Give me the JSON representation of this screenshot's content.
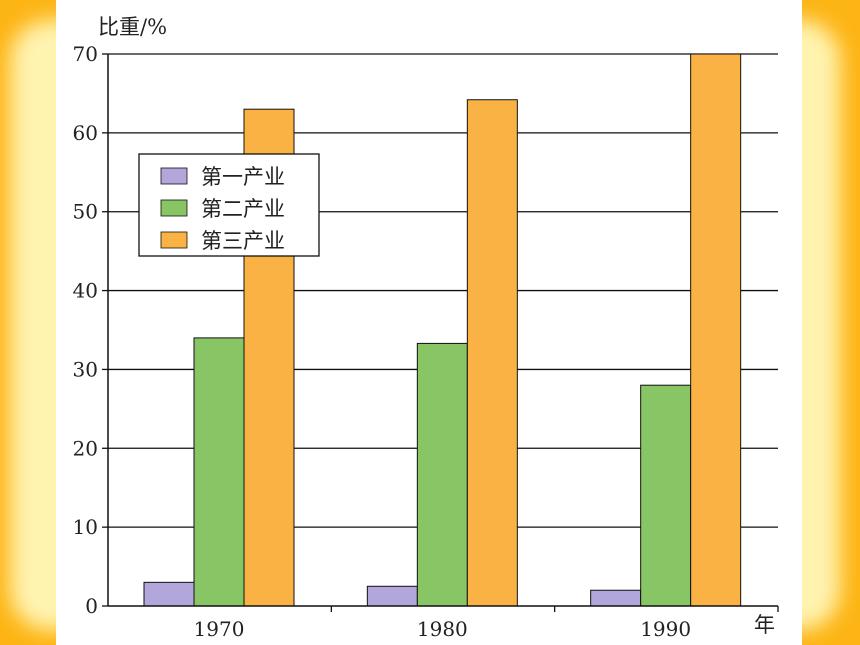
{
  "chart_data": {
    "type": "bar",
    "title": "",
    "ylabel": "比重/%",
    "xlabel": "年",
    "categories": [
      "1970",
      "1980",
      "1990"
    ],
    "ylim": [
      0,
      70
    ],
    "yticks": [
      "0",
      "10",
      "20",
      "30",
      "40",
      "50",
      "60",
      "70"
    ],
    "grid": true,
    "legend_position": "top-left",
    "series": [
      {
        "name": "第一产业",
        "color": "#B2A6DA",
        "values": [
          3,
          2.5,
          2
        ]
      },
      {
        "name": "第二产业",
        "color": "#88C565",
        "values": [
          34,
          33.3,
          28
        ]
      },
      {
        "name": "第三产业",
        "color": "#FBB244",
        "values": [
          63,
          64.2,
          70
        ]
      }
    ]
  }
}
